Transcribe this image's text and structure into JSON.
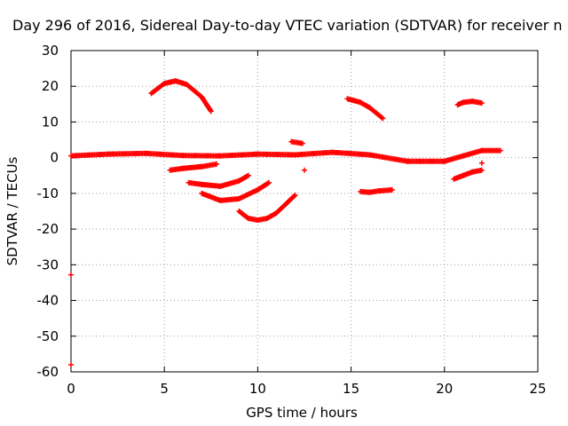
{
  "chart_data": {
    "type": "scatter",
    "title": "Day 296 of 2016, Sidereal Day-to-day VTEC variation (SDTVAR) for receiver n",
    "xlabel": "GPS time / hours",
    "ylabel": "SDTVAR / TECUs",
    "xlim": [
      0,
      25
    ],
    "ylim": [
      -60,
      30
    ],
    "xticks": [
      "0",
      "5",
      "10",
      "15",
      "20",
      "25"
    ],
    "yticks": [
      "30",
      "20",
      "10",
      "0",
      "-10",
      "-20",
      "-30",
      "-40",
      "-50",
      "-60"
    ],
    "grid": true,
    "marker": "+",
    "color": "#ff0000",
    "series": [
      {
        "x": [
          0,
          2,
          4,
          6,
          8,
          10,
          12,
          14,
          16,
          18,
          20,
          21,
          22,
          23
        ],
        "y": [
          0.5,
          1.0,
          1.2,
          0.6,
          0.5,
          1.0,
          0.8,
          1.5,
          0.8,
          -1.0,
          -1.0,
          0.5,
          2.0,
          2.0
        ]
      },
      {
        "x": [
          4.3,
          5.0,
          5.6,
          6.2,
          7.0,
          7.5
        ],
        "y": [
          18,
          20.8,
          21.5,
          20.5,
          17,
          13
        ]
      },
      {
        "x": [
          5.3,
          6.0,
          7.0,
          7.8
        ],
        "y": [
          -3.5,
          -3.0,
          -2.5,
          -1.8
        ]
      },
      {
        "x": [
          6.3,
          7.0,
          8.0,
          9.0,
          9.5
        ],
        "y": [
          -7,
          -7.5,
          -8,
          -6.5,
          -5
        ]
      },
      {
        "x": [
          7.0,
          8.0,
          9.0,
          10.0,
          10.6
        ],
        "y": [
          -10,
          -12,
          -11.5,
          -9,
          -7
        ]
      },
      {
        "x": [
          9.0,
          9.5,
          10.0,
          10.5,
          11.0,
          11.5,
          12.0
        ],
        "y": [
          -15,
          -17,
          -17.5,
          -17,
          -15.5,
          -13,
          -10.5
        ]
      },
      {
        "x": [
          11.8,
          12.4
        ],
        "y": [
          4.5,
          4.0
        ]
      },
      {
        "x": [
          12.5
        ],
        "y": [
          -3.5
        ]
      },
      {
        "x": [
          14.8,
          15.5,
          16.0,
          16.7
        ],
        "y": [
          16.5,
          15.5,
          14,
          11
        ]
      },
      {
        "x": [
          15.5,
          16.0,
          16.5,
          17.2
        ],
        "y": [
          -9.5,
          -9.7,
          -9.3,
          -9
        ]
      },
      {
        "x": [
          20.5,
          21.0,
          21.5,
          22.0
        ],
        "y": [
          -6,
          -5,
          -4,
          -3.5
        ]
      },
      {
        "x": [
          20.7,
          21.0,
          21.5,
          22.0
        ],
        "y": [
          14.8,
          15.5,
          15.8,
          15.3
        ]
      },
      {
        "x": [
          22.0
        ],
        "y": [
          -1.5
        ]
      },
      {
        "x": [
          0,
          0
        ],
        "y": [
          -32.8,
          -58
        ]
      }
    ]
  }
}
